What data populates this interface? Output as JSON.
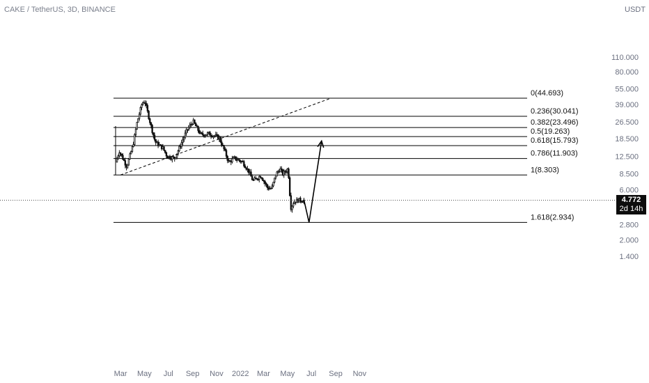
{
  "header": {
    "symbol_title": "CAKE / TetherUS, 3D, BINANCE"
  },
  "price_scale": {
    "currency": "USDT",
    "ticks": [
      "110.000",
      "80.000",
      "55.000",
      "39.000",
      "26.500",
      "18.500",
      "12.500",
      "8.500",
      "6.000",
      "2.800",
      "2.000",
      "1.400"
    ]
  },
  "last_price": {
    "value": "4.772",
    "countdown": "2d 14h"
  },
  "colors": {
    "up": "#111111",
    "down": "#111111",
    "lines": "#000000",
    "axis_text": "#6b7080"
  },
  "chart_data": {
    "type": "candlestick",
    "scale": "log",
    "x_ticks": [
      "Mar",
      "May",
      "Jul",
      "Sep",
      "Nov",
      "2022",
      "Mar",
      "May",
      "Jul",
      "Sep",
      "Nov"
    ],
    "fib_levels": [
      {
        "label": "0(44.693)",
        "value": 44.693
      },
      {
        "label": "0.236(30.041)",
        "value": 30.041
      },
      {
        "label": "0.382(23.496)",
        "value": 23.496
      },
      {
        "label": "0.5(19.263)",
        "value": 19.263
      },
      {
        "label": "0.618(15.793)",
        "value": 15.793
      },
      {
        "label": "0.786(11.903)",
        "value": 11.903
      },
      {
        "label": "1(8.303)",
        "value": 8.303
      },
      {
        "label": "1.618(2.934)",
        "value": 2.934
      }
    ],
    "waypoints": [
      [
        "2021-02-20",
        11
      ],
      [
        "2021-03-01",
        14
      ],
      [
        "2021-03-20",
        10
      ],
      [
        "2021-04-05",
        16
      ],
      [
        "2021-04-15",
        26
      ],
      [
        "2021-04-28",
        40
      ],
      [
        "2021-05-05",
        42
      ],
      [
        "2021-05-20",
        25
      ],
      [
        "2021-06-01",
        17
      ],
      [
        "2021-06-20",
        15
      ],
      [
        "2021-07-01",
        12.5
      ],
      [
        "2021-07-20",
        12
      ],
      [
        "2021-08-01",
        15
      ],
      [
        "2021-08-20",
        22
      ],
      [
        "2021-09-05",
        27
      ],
      [
        "2021-09-25",
        20
      ],
      [
        "2021-10-15",
        20.5
      ],
      [
        "2021-11-10",
        19
      ],
      [
        "2021-11-25",
        14
      ],
      [
        "2021-12-05",
        11
      ],
      [
        "2021-12-20",
        12
      ],
      [
        "2022-01-10",
        11
      ],
      [
        "2022-01-25",
        9
      ],
      [
        "2022-02-05",
        7.3
      ],
      [
        "2022-02-25",
        8.2
      ],
      [
        "2022-03-15",
        6.2
      ],
      [
        "2022-03-25",
        6.2
      ],
      [
        "2022-04-05",
        8.5
      ],
      [
        "2022-04-15",
        9.5
      ],
      [
        "2022-04-22",
        8.5
      ],
      [
        "2022-05-05",
        9.5
      ],
      [
        "2022-05-08",
        7.5
      ],
      [
        "2022-05-12",
        4
      ],
      [
        "2022-05-20",
        4.6
      ],
      [
        "2022-06-01",
        4.8
      ],
      [
        "2022-06-12",
        4.772
      ]
    ],
    "projection": [
      [
        "2022-06-12",
        4.8
      ],
      [
        "2022-06-25",
        2.934
      ],
      [
        "2022-07-27",
        17.5
      ]
    ],
    "trendline": [
      [
        "2021-03-01",
        8.303
      ],
      [
        "2022-08-20",
        44.693
      ]
    ]
  }
}
